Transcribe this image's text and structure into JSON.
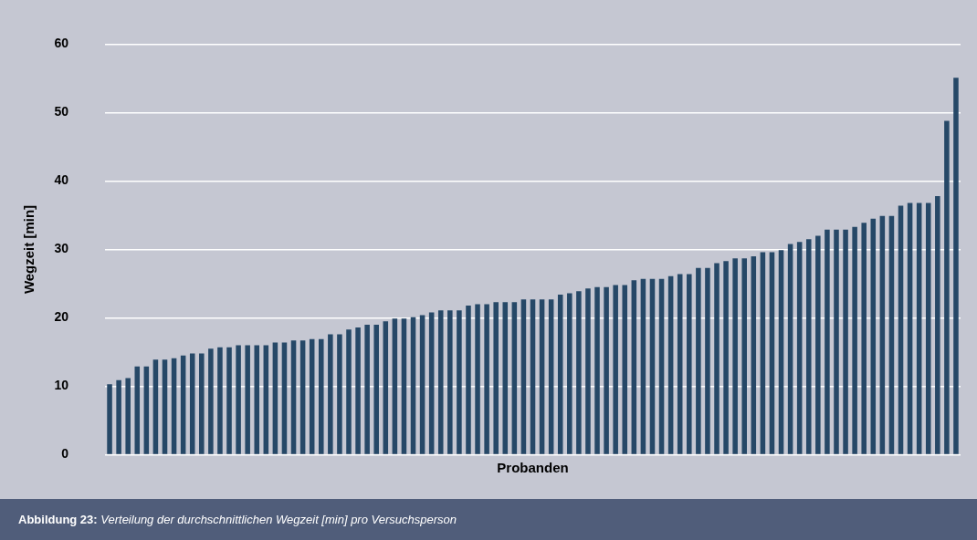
{
  "chart_data": {
    "type": "bar",
    "xlabel": "Probanden",
    "ylabel": "Wegzeit [min]",
    "categories": [
      null,
      null,
      null,
      null,
      null,
      null,
      null,
      null,
      null,
      null,
      null,
      null,
      null,
      null,
      null,
      null,
      null,
      null,
      null,
      null,
      null,
      null,
      null,
      null,
      null,
      null,
      null,
      null,
      null,
      null,
      null,
      null,
      null,
      null,
      null,
      null,
      null,
      null,
      null,
      null,
      null,
      null,
      null,
      null,
      null,
      null,
      null,
      null,
      null,
      null,
      null,
      null,
      null,
      null,
      null,
      null,
      null,
      null,
      null,
      null,
      null,
      null,
      null,
      null,
      null,
      null,
      null,
      null,
      null,
      null,
      null,
      null,
      null,
      null,
      null,
      null,
      null,
      null,
      null,
      null,
      null,
      null,
      null,
      null,
      null,
      null,
      null,
      null,
      null,
      null,
      null,
      null,
      null
    ],
    "values": [
      10.3,
      10.9,
      11.2,
      12.9,
      12.9,
      13.9,
      13.9,
      14.1,
      14.5,
      14.8,
      14.8,
      15.5,
      15.7,
      15.7,
      16.0,
      16.0,
      16.0,
      16.0,
      16.4,
      16.4,
      16.7,
      16.7,
      16.9,
      16.9,
      17.6,
      17.6,
      18.3,
      18.6,
      19.0,
      19.0,
      19.5,
      19.9,
      19.9,
      20.1,
      20.4,
      20.8,
      21.1,
      21.1,
      21.1,
      21.8,
      22.0,
      22.0,
      22.3,
      22.3,
      22.3,
      22.7,
      22.7,
      22.7,
      22.7,
      23.4,
      23.6,
      23.9,
      24.3,
      24.5,
      24.5,
      24.8,
      24.8,
      25.5,
      25.7,
      25.7,
      25.7,
      26.1,
      26.4,
      26.4,
      27.3,
      27.3,
      28.0,
      28.3,
      28.7,
      28.7,
      29.0,
      29.6,
      29.6,
      29.9,
      30.8,
      31.1,
      31.5,
      32.0,
      32.9,
      32.9,
      32.9,
      33.3,
      33.9,
      34.5,
      34.9,
      34.9,
      36.4,
      36.8,
      36.8,
      36.8,
      37.8,
      48.8,
      55.1
    ],
    "color": "#264867",
    "ylim": [
      0,
      60
    ],
    "yticks": [
      0,
      10,
      20,
      30,
      40,
      50,
      60
    ],
    "grid": "y",
    "legend": false,
    "tick_labels": "y",
    "annotations": [
      "Abbildung 23: Verteilung der durchschnittlichen Wegzeit [min] pro Versuchsperson"
    ]
  }
}
